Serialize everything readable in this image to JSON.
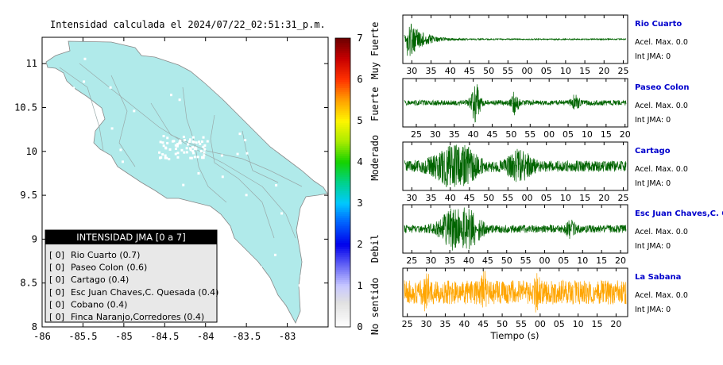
{
  "map": {
    "title": "Intensidad calculada el 2024/07/22_02:51:31_p.m.",
    "x_ticks": [
      "-86",
      "-85.5",
      "-85",
      "-84.5",
      "-84",
      "-83.5",
      "-83"
    ],
    "y_ticks": [
      "11",
      "10.5",
      "10",
      "9.5",
      "9",
      "8.5",
      "8"
    ],
    "xlim": [
      -86,
      -82.5
    ],
    "ylim": [
      8,
      11.3
    ],
    "land_color": "#b0eaea",
    "legend": {
      "header": "INTENSIDAD JMA [0 a 7]",
      "items": [
        {
          "level": "[ 0]",
          "station": "Rio Cuarto (0.7)"
        },
        {
          "level": "[ 0]",
          "station": "Paseo Colon (0.6)"
        },
        {
          "level": "[ 0]",
          "station": "Cartago (0.4)"
        },
        {
          "level": "[ 0]",
          "station": "Esc Juan Chaves,C. Quesada (0.4)"
        },
        {
          "level": "[ 0]",
          "station": "Cobano (0.4)"
        },
        {
          "level": "[ 0]",
          "station": "Finca Naranjo,Corredores (0.4)"
        }
      ]
    }
  },
  "colorbar": {
    "ticks": [
      "0",
      "1",
      "2",
      "3",
      "4",
      "5",
      "6",
      "7"
    ],
    "labels": [
      "No sentido",
      "Debil",
      "Moderado",
      "Fuerte",
      "Muy Fuerte"
    ],
    "range": [
      0,
      7
    ]
  },
  "xlabel": "Tiempo (s)",
  "chart_data": [
    {
      "type": "line",
      "station": "Rio Cuarto",
      "acel": "Acel. Max. 0.0",
      "jma": "Int JMA: 0",
      "x_ticks": [
        "30",
        "35",
        "40",
        "45",
        "50",
        "55",
        "00",
        "05",
        "10",
        "15",
        "20",
        "25"
      ],
      "color": "#006400"
    },
    {
      "type": "line",
      "station": "Paseo Colon",
      "acel": "Acel. Max. 0.0",
      "jma": "Int JMA: 0",
      "x_ticks": [
        "25",
        "30",
        "35",
        "40",
        "45",
        "50",
        "55",
        "00",
        "05",
        "10",
        "15",
        "20"
      ],
      "color": "#006400"
    },
    {
      "type": "line",
      "station": "Cartago",
      "acel": "Acel. Max. 0.0",
      "jma": "Int JMA: 0",
      "x_ticks": [
        "30",
        "35",
        "40",
        "45",
        "50",
        "55",
        "00",
        "05",
        "10",
        "15",
        "20",
        "25"
      ],
      "color": "#006400"
    },
    {
      "type": "line",
      "station": "Esc Juan Chaves,C. Qu",
      "acel": "Acel. Max. 0.0",
      "jma": "Int JMA: 0",
      "x_ticks": [
        "25",
        "30",
        "35",
        "40",
        "45",
        "50",
        "55",
        "00",
        "05",
        "10",
        "15",
        "20"
      ],
      "color": "#006400"
    },
    {
      "type": "line",
      "station": "La Sabana",
      "acel": "Acel. Max. 0.0",
      "jma": "Int JMA: 0",
      "x_ticks": [
        "25",
        "30",
        "35",
        "40",
        "45",
        "50",
        "55",
        "00",
        "05",
        "10",
        "15",
        "20"
      ],
      "color": "#ffa500"
    }
  ]
}
